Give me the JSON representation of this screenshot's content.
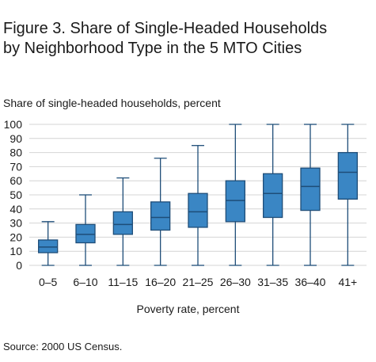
{
  "figure": {
    "title_line1": "Figure 3. Share of Single-Headed Households",
    "title_line2": "by Neighborhood Type in the 5 MTO Cities",
    "source": "Source: 2000 US Census."
  },
  "chart_data": {
    "type": "boxplot",
    "ylabel": "Share of single-headed households, percent",
    "xlabel": "Poverty rate, percent",
    "ylim": [
      0,
      100
    ],
    "yticks": [
      0,
      10,
      20,
      30,
      40,
      50,
      60,
      70,
      80,
      90,
      100
    ],
    "grid": true,
    "box_color": "#3a86c4",
    "edge_color": "#1e4d78",
    "categories": [
      "0–5",
      "6–10",
      "11–15",
      "16–20",
      "21–25",
      "26–30",
      "31–35",
      "36–40",
      "41+"
    ],
    "boxes": [
      {
        "min": 0,
        "q1": 9,
        "median": 13,
        "q3": 18,
        "max": 31
      },
      {
        "min": 0,
        "q1": 16,
        "median": 22,
        "q3": 29,
        "max": 50
      },
      {
        "min": 0,
        "q1": 22,
        "median": 29,
        "q3": 38,
        "max": 62
      },
      {
        "min": 0,
        "q1": 25,
        "median": 34,
        "q3": 45,
        "max": 76
      },
      {
        "min": 0,
        "q1": 27,
        "median": 38,
        "q3": 51,
        "max": 85
      },
      {
        "min": 0,
        "q1": 31,
        "median": 46,
        "q3": 60,
        "max": 100
      },
      {
        "min": 0,
        "q1": 34,
        "median": 51,
        "q3": 65,
        "max": 100
      },
      {
        "min": 0,
        "q1": 39,
        "median": 56,
        "q3": 69,
        "max": 100
      },
      {
        "min": 0,
        "q1": 47,
        "median": 66,
        "q3": 80,
        "max": 100
      }
    ]
  }
}
